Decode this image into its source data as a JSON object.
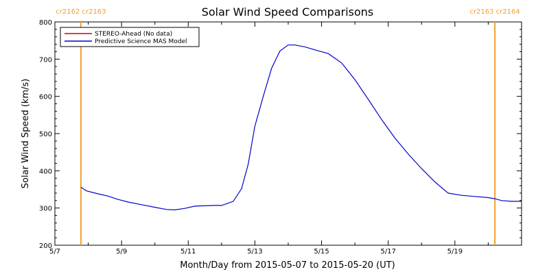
{
  "chart_data": {
    "type": "line",
    "title": "Solar Wind Speed Comparisons",
    "xlabel": "Month/Day from 2015-05-07 to 2015-05-20 (UT)",
    "ylabel": "Solar Wind Speed (km/s)",
    "x_start_date": "2015-05-07",
    "xlim_days": [
      0,
      14
    ],
    "ylim": [
      200,
      800
    ],
    "y_ticks": [
      200,
      300,
      400,
      500,
      600,
      700,
      800
    ],
    "x_ticks": [
      {
        "day": 0,
        "label": "5/7"
      },
      {
        "day": 2,
        "label": "5/9"
      },
      {
        "day": 4,
        "label": "5/11"
      },
      {
        "day": 6,
        "label": "5/13"
      },
      {
        "day": 8,
        "label": "5/15"
      },
      {
        "day": 10,
        "label": "5/17"
      },
      {
        "day": 12,
        "label": "5/19"
      }
    ],
    "carrington_markers": [
      {
        "day": 0.78,
        "label": "cr2162 cr2163",
        "color": "#f0a030"
      },
      {
        "day": 13.2,
        "label": "cr2163 cr2164",
        "color": "#f0a030"
      }
    ],
    "legend_position": "top-left",
    "series": [
      {
        "name": "STEREO-Ahead (No data)",
        "color": "#cc0000",
        "x": [],
        "y": []
      },
      {
        "name": "Predictive Science MAS Model",
        "color": "#0000cc",
        "x": [
          0.78,
          0.95,
          1.3,
          1.6,
          1.9,
          2.2,
          2.6,
          3.0,
          3.35,
          3.6,
          3.9,
          4.2,
          4.5,
          4.8,
          5.0,
          5.2,
          5.35,
          5.6,
          5.8,
          6.0,
          6.25,
          6.5,
          6.75,
          7.0,
          7.2,
          7.5,
          7.8,
          8.2,
          8.6,
          9.0,
          9.4,
          9.8,
          10.2,
          10.6,
          11.0,
          11.4,
          11.8,
          12.2,
          12.6,
          13.0,
          13.2,
          13.4,
          13.7,
          14.0
        ],
        "y": [
          356,
          346,
          338,
          332,
          323,
          316,
          309,
          302,
          296,
          295,
          299,
          305,
          306,
          307,
          307,
          313,
          318,
          352,
          418,
          520,
          600,
          675,
          722,
          738,
          738,
          733,
          725,
          715,
          690,
          645,
          592,
          538,
          488,
          445,
          406,
          370,
          340,
          334,
          331,
          328,
          325,
          320,
          318,
          318
        ]
      }
    ]
  }
}
